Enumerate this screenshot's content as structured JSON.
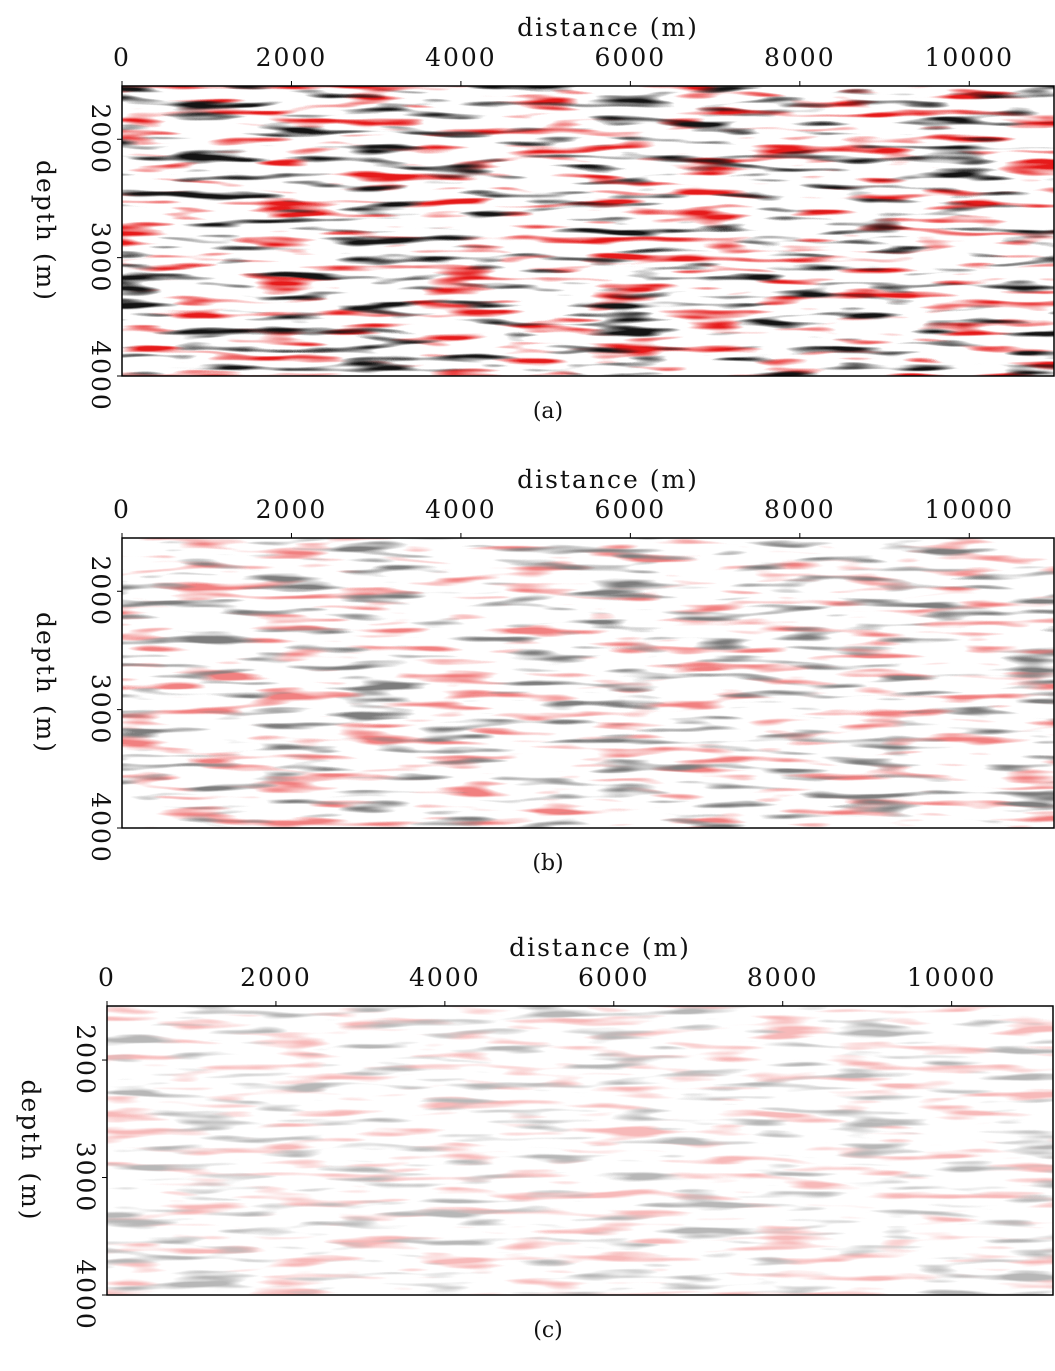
{
  "chart_data": [
    {
      "type": "seismic",
      "xlabel": "distance (m)",
      "ylabel": "depth (m)",
      "caption": "(a)",
      "xlim": [
        0,
        11000
      ],
      "xticks": [
        0,
        2000,
        4000,
        6000,
        8000,
        10000
      ],
      "ylim": [
        1550,
        4000
      ],
      "yticks": [
        2000,
        3000,
        4000
      ]
    },
    {
      "type": "seismic",
      "xlabel": "distance (m)",
      "ylabel": "depth (m)",
      "caption": "(b)",
      "xlim": [
        0,
        11000
      ],
      "xticks": [
        0,
        2000,
        4000,
        6000,
        8000,
        10000
      ],
      "ylim": [
        1550,
        4000
      ],
      "yticks": [
        2000,
        3000,
        4000
      ]
    },
    {
      "type": "seismic",
      "xlabel": "distance (m)",
      "ylabel": "depth (m)",
      "caption": "(c)",
      "xlim": [
        0,
        11200
      ],
      "xticks": [
        0,
        2000,
        4000,
        6000,
        8000,
        10000
      ],
      "ylim": [
        1540,
        4000
      ],
      "yticks": [
        2000,
        3000,
        4000
      ]
    }
  ]
}
